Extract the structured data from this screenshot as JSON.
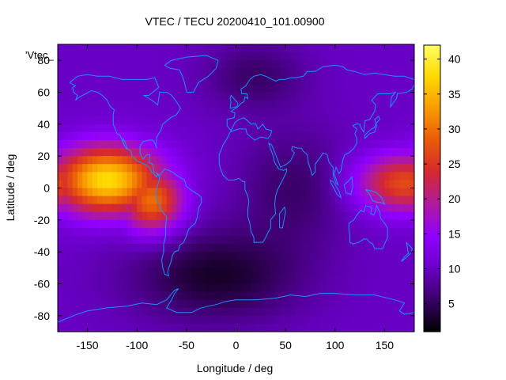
{
  "chart_data": {
    "type": "heatmap",
    "title": "VTEC / TECU 20200410_101.00900",
    "xlabel": "Longitude / deg",
    "ylabel": "Latitude / deg",
    "series_label": "'Vtec_",
    "xlim": [
      -180,
      180
    ],
    "ylim": [
      -90,
      90
    ],
    "x_ticks": [
      -150,
      -100,
      -50,
      0,
      50,
      100,
      150
    ],
    "y_ticks": [
      -80,
      -60,
      -40,
      -20,
      0,
      20,
      40,
      60,
      80
    ],
    "colorbar": {
      "range": [
        1,
        42
      ],
      "ticks": [
        5,
        10,
        15,
        20,
        25,
        30,
        35,
        40
      ],
      "palette": [
        "#000000",
        "#3a0068",
        "#6a00c8",
        "#9000ff",
        "#b01a9e",
        "#d62830",
        "#e85a08",
        "#f89a00",
        "#ffd800",
        "#ffff60"
      ]
    },
    "coastline_color": "#1e90ff",
    "grid": false,
    "background_level": 10,
    "field_features": [
      {
        "lon": -130,
        "lat": 5,
        "peak": 38,
        "sigma_lon": 38,
        "sigma_lat": 15
      },
      {
        "lon": -85,
        "lat": -8,
        "peak": 30,
        "sigma_lon": 22,
        "sigma_lat": 14
      },
      {
        "lon": 170,
        "lat": 3,
        "peak": 27,
        "sigma_lon": 35,
        "sigma_lat": 13
      },
      {
        "lon": -20,
        "lat": -55,
        "peak": 2,
        "sigma_lon": 60,
        "sigma_lat": 20
      },
      {
        "lon": 60,
        "lat": 0,
        "peak": 5,
        "sigma_lon": 40,
        "sigma_lat": 25
      },
      {
        "lon": 20,
        "lat": 70,
        "peak": 5,
        "sigma_lon": 35,
        "sigma_lat": 15
      }
    ]
  }
}
